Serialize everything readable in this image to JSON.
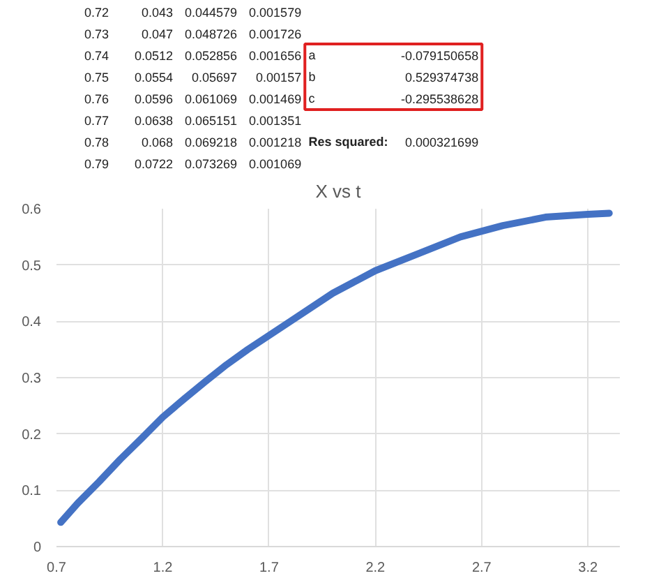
{
  "chart_data": {
    "type": "line",
    "title": "X vs t",
    "x": [
      0.72,
      0.8,
      0.9,
      1.0,
      1.1,
      1.2,
      1.3,
      1.4,
      1.5,
      1.6,
      1.8,
      2.0,
      2.2,
      2.4,
      2.6,
      2.8,
      3.0,
      3.2,
      3.3
    ],
    "series": [
      {
        "color": "#4472c4",
        "values": [
          0.043,
          0.077,
          0.115,
          0.155,
          0.192,
          0.23,
          0.262,
          0.293,
          0.323,
          0.35,
          0.4,
          0.45,
          0.49,
          0.52,
          0.55,
          0.57,
          0.585,
          0.59,
          0.592
        ]
      }
    ],
    "xlim": [
      0.7,
      3.35
    ],
    "ylim": [
      0,
      0.6
    ],
    "xticks": [
      0.7,
      1.2,
      1.7,
      2.2,
      2.7,
      3.2
    ],
    "yticks": [
      0,
      0.1,
      0.2,
      0.3,
      0.4,
      0.5,
      0.6
    ],
    "grid": true,
    "marker": "none",
    "line_style": "solid",
    "annotations": [
      "0.72",
      "0.043",
      "0.044579",
      "0.001579",
      "0.73",
      "0.047",
      "0.048726",
      "0.001726",
      "0.74",
      "0.0512",
      "0.052856",
      "0.001656",
      "a",
      "-0.079150658",
      "0.75",
      "0.0554",
      "0.05697",
      "0.00157",
      "b",
      "0.529374738",
      "0.76",
      "0.0596",
      "0.061069",
      "0.001469",
      "c",
      "-0.295538628",
      "0.77",
      "0.0638",
      "0.065151",
      "0.001351",
      "0.78",
      "0.068",
      "0.069218",
      "0.001218",
      "Res squared:",
      "0.000321699",
      "0.79",
      "0.0722",
      "0.073269",
      "0.001069"
    ]
  }
}
